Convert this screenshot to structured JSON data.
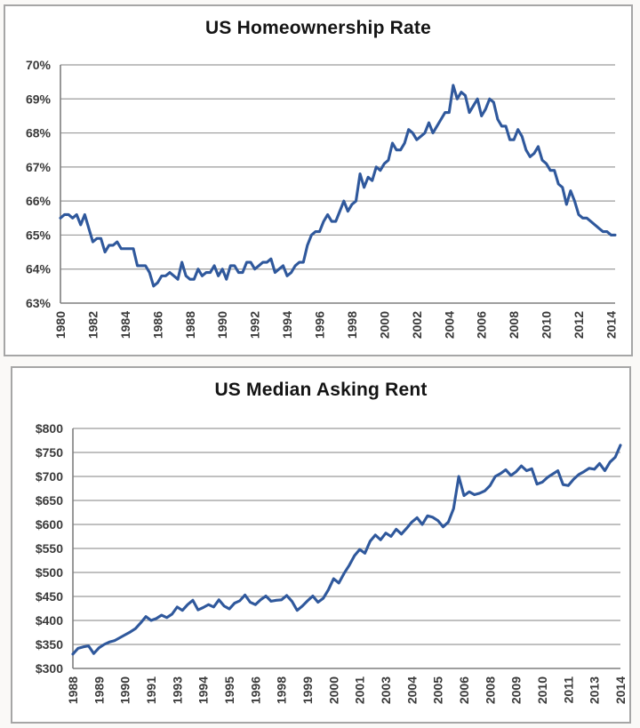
{
  "styles": {
    "line_color": "#2f589c",
    "grid_color": "#9b9b9b",
    "axis_color": "#7f7f7f",
    "tick_label_color": "#3a3a3a",
    "title_color": "#141414",
    "panel_border_color": "#a6a6a6",
    "panel_background": "#ffffff"
  },
  "chart_data": [
    {
      "type": "line",
      "title": "US Homeownership Rate",
      "frequency": "quarterly",
      "x_start": "1980 Q1",
      "x_end": "2014 Q2",
      "legend": "none",
      "grid": "horizontal",
      "line_color": "#2f589c",
      "ylim": [
        63,
        70
      ],
      "y_step": 1,
      "y_tick_labels": [
        "70%",
        "69%",
        "68%",
        "67%",
        "66%",
        "65%",
        "64%",
        "63%"
      ],
      "x_tick_interval_points": 8,
      "x_tick_labels": [
        "1980",
        "1982",
        "1984",
        "1986",
        "1988",
        "1990",
        "1992",
        "1994",
        "1996",
        "1998",
        "2000",
        "2002",
        "2004",
        "2006",
        "2008",
        "2010",
        "2012",
        "2014"
      ],
      "values": [
        65.5,
        65.6,
        65.6,
        65.5,
        65.6,
        65.3,
        65.6,
        65.2,
        64.8,
        64.9,
        64.9,
        64.5,
        64.7,
        64.7,
        64.8,
        64.6,
        64.6,
        64.6,
        64.6,
        64.1,
        64.1,
        64.1,
        63.9,
        63.5,
        63.6,
        63.8,
        63.8,
        63.9,
        63.8,
        63.7,
        64.2,
        63.8,
        63.7,
        63.7,
        64.0,
        63.8,
        63.9,
        63.9,
        64.1,
        63.8,
        64.0,
        63.7,
        64.1,
        64.1,
        63.9,
        63.9,
        64.2,
        64.2,
        64.0,
        64.1,
        64.2,
        64.2,
        64.3,
        63.9,
        64.0,
        64.1,
        63.8,
        63.9,
        64.1,
        64.2,
        64.2,
        64.7,
        65.0,
        65.1,
        65.1,
        65.4,
        65.6,
        65.4,
        65.4,
        65.7,
        66.0,
        65.7,
        65.9,
        66.0,
        66.8,
        66.4,
        66.7,
        66.6,
        67.0,
        66.9,
        67.1,
        67.2,
        67.7,
        67.5,
        67.5,
        67.7,
        68.1,
        68.0,
        67.8,
        67.9,
        68.0,
        68.3,
        68.0,
        68.2,
        68.4,
        68.6,
        68.6,
        69.4,
        69.0,
        69.2,
        69.1,
        68.6,
        68.8,
        69.0,
        68.5,
        68.7,
        69.0,
        68.9,
        68.4,
        68.2,
        68.2,
        67.8,
        67.8,
        68.1,
        67.9,
        67.5,
        67.3,
        67.4,
        67.6,
        67.2,
        67.1,
        66.9,
        66.9,
        66.5,
        66.4,
        65.9,
        66.3,
        66.0,
        65.6,
        65.5,
        65.5,
        65.4,
        65.3,
        65.2,
        65.1,
        65.1,
        65.0,
        65.0
      ]
    },
    {
      "type": "line",
      "title": "US Median Asking Rent",
      "frequency": "quarterly",
      "x_start": "1988 Q1",
      "x_end": "2014 Q2",
      "legend": "none",
      "grid": "horizontal",
      "line_color": "#2f589c",
      "ylim": [
        300,
        800
      ],
      "y_step": 50,
      "y_tick_labels": [
        "$800",
        "$750",
        "$700",
        "$650",
        "$600",
        "$550",
        "$500",
        "$450",
        "$400",
        "$350",
        "$300"
      ],
      "x_tick_interval_points": 5,
      "x_tick_labels": [
        "1988",
        "1989",
        "1990",
        "1991",
        "1993",
        "1994",
        "1995",
        "1996",
        "1998",
        "1999",
        "2000",
        "2001",
        "2003",
        "2004",
        "2005",
        "2006",
        "2008",
        "2009",
        "2010",
        "2011",
        "2013",
        "2014"
      ],
      "values": [
        330,
        342,
        345,
        347,
        331,
        343,
        350,
        355,
        358,
        364,
        370,
        376,
        383,
        395,
        408,
        400,
        404,
        411,
        406,
        413,
        428,
        421,
        433,
        442,
        422,
        427,
        433,
        428,
        443,
        430,
        424,
        436,
        441,
        453,
        438,
        433,
        443,
        451,
        440,
        442,
        443,
        452,
        440,
        421,
        430,
        441,
        451,
        438,
        446,
        464,
        487,
        478,
        498,
        515,
        535,
        548,
        540,
        565,
        578,
        568,
        582,
        575,
        590,
        580,
        592,
        605,
        614,
        600,
        618,
        615,
        608,
        595,
        605,
        633,
        700,
        660,
        668,
        662,
        665,
        670,
        681,
        700,
        706,
        714,
        702,
        710,
        722,
        712,
        716,
        684,
        688,
        698,
        705,
        712,
        683,
        681,
        694,
        704,
        710,
        717,
        715,
        727,
        712,
        730,
        740,
        765
      ]
    }
  ]
}
